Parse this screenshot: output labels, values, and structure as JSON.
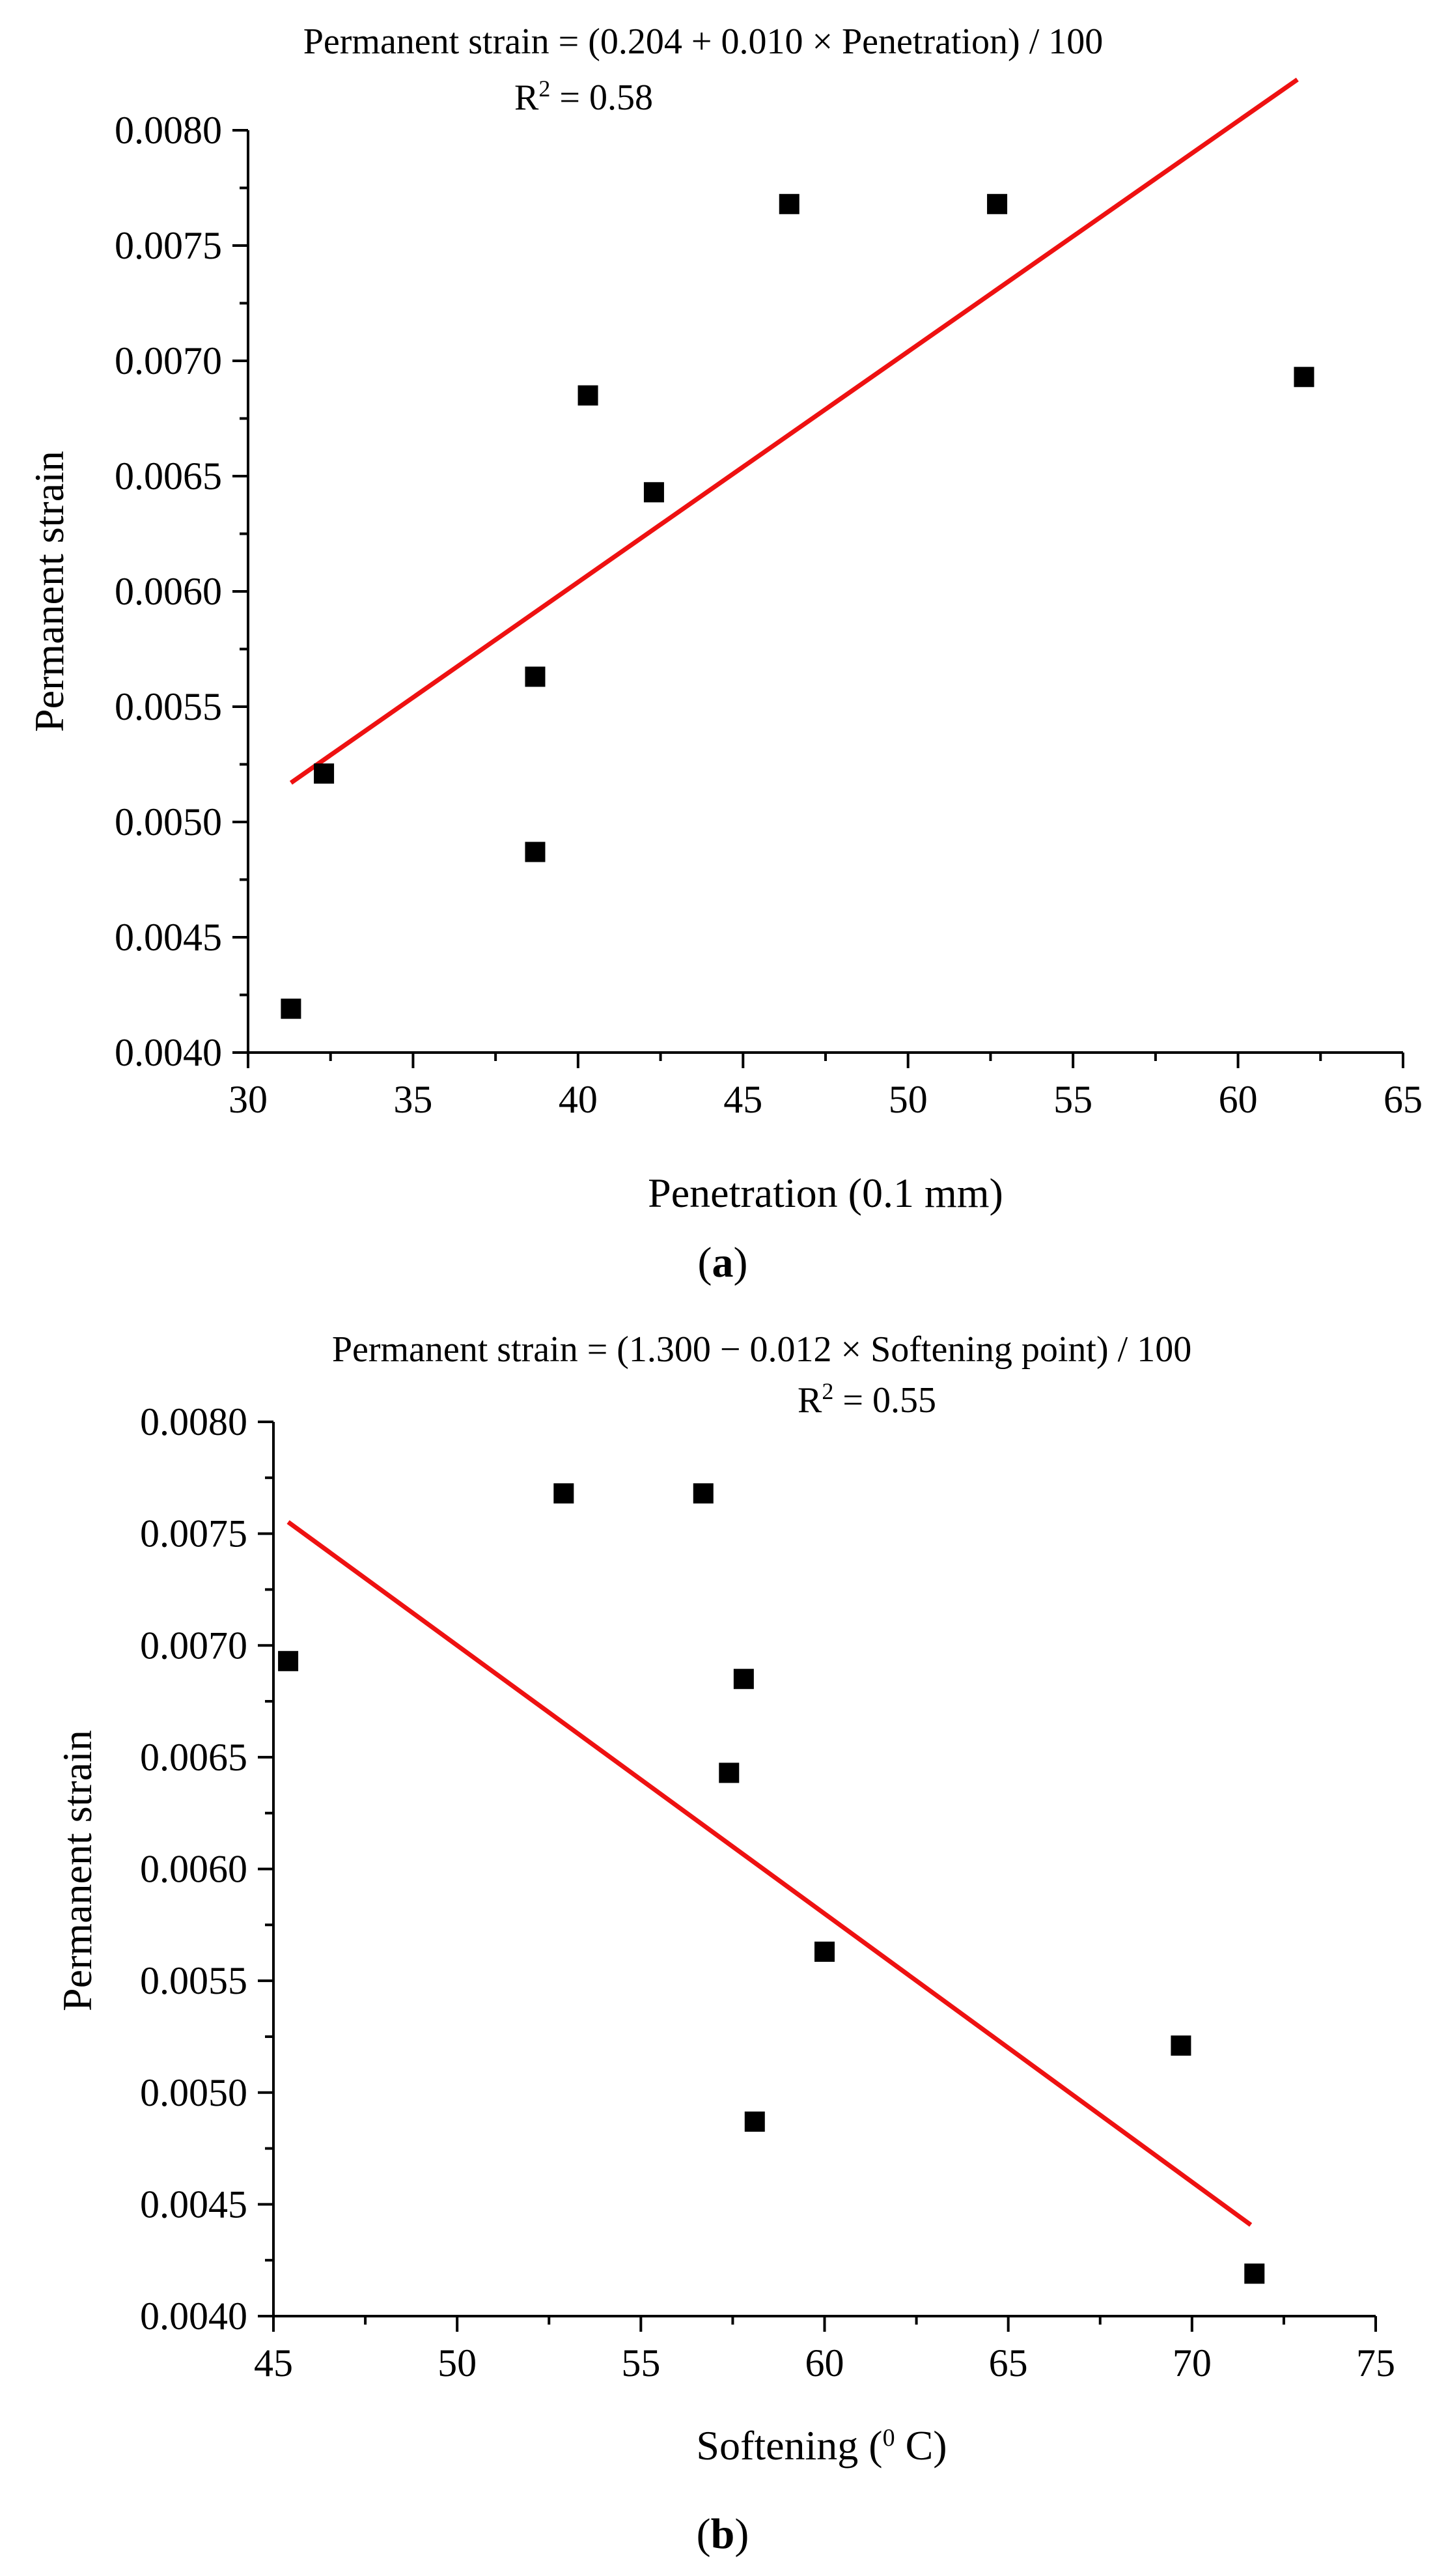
{
  "colors": {
    "marker": "#000000",
    "fit_line": "#ee1111",
    "axis": "#000000"
  },
  "chart_data": [
    {
      "type": "scatter",
      "panel_label_open": "(",
      "panel_label": "a",
      "panel_label_close": ")",
      "title": "Permanent strain = (0.204 + 0.010 × Penetration) / 100",
      "r2_label": "R",
      "r2_sup": "2",
      "r2_value": " = 0.58",
      "xlabel": "Penetration (0.1 mm)",
      "ylabel": "Permanent strain",
      "xlim": [
        30,
        65
      ],
      "ylim": [
        0.004,
        0.008
      ],
      "xticks": [
        30,
        35,
        40,
        45,
        50,
        55,
        60,
        65
      ],
      "yticks": [
        0.004,
        0.0045,
        0.005,
        0.0055,
        0.006,
        0.0065,
        0.007,
        0.0075,
        0.008
      ],
      "xtick_labels": [
        "30",
        "35",
        "40",
        "45",
        "50",
        "55",
        "60",
        "65"
      ],
      "ytick_labels": [
        "0.0040",
        "0.0045",
        "0.0050",
        "0.0055",
        "0.0060",
        "0.0065",
        "0.0070",
        "0.0075",
        "0.0080"
      ],
      "x": [
        31.3,
        32.3,
        38.7,
        38.7,
        40.3,
        42.3,
        46.4,
        52.7,
        62.0
      ],
      "y": [
        0.00419,
        0.00521,
        0.00563,
        0.00487,
        0.00685,
        0.00643,
        0.00768,
        0.00768,
        0.00693
      ],
      "fit": {
        "intercept": 0.00204,
        "slope": 0.0001,
        "x_range": [
          31.3,
          61.8
        ]
      }
    },
    {
      "type": "scatter",
      "panel_label_open": "(",
      "panel_label": "b",
      "panel_label_close": ")",
      "title": "Permanent strain = (1.300 − 0.012 × Softening point) / 100",
      "r2_label": "R",
      "r2_sup": "2",
      "r2_value": " = 0.55",
      "xlabel_pre": "Softening (",
      "xlabel_sup": "0",
      "xlabel_post": " C)",
      "ylabel": "Permanent strain",
      "xlim": [
        45,
        75
      ],
      "ylim": [
        0.004,
        0.008
      ],
      "xticks": [
        45,
        50,
        55,
        60,
        65,
        70,
        75
      ],
      "yticks": [
        0.004,
        0.0045,
        0.005,
        0.0055,
        0.006,
        0.0065,
        0.007,
        0.0075,
        0.008
      ],
      "xtick_labels": [
        "45",
        "50",
        "55",
        "60",
        "65",
        "70",
        "75"
      ],
      "ytick_labels": [
        "0.0040",
        "0.0045",
        "0.0050",
        "0.0055",
        "0.0060",
        "0.0065",
        "0.0070",
        "0.0075",
        "0.0080"
      ],
      "x": [
        45.4,
        52.9,
        56.7,
        57.8,
        57.4,
        60.0,
        58.1,
        69.7,
        71.7
      ],
      "y": [
        0.00693,
        0.00768,
        0.00768,
        0.00685,
        0.00643,
        0.00563,
        0.00487,
        0.00521,
        0.00419
      ],
      "fit": {
        "intercept": 0.013,
        "slope": -0.00012,
        "x_range": [
          45.4,
          71.6
        ]
      }
    }
  ]
}
